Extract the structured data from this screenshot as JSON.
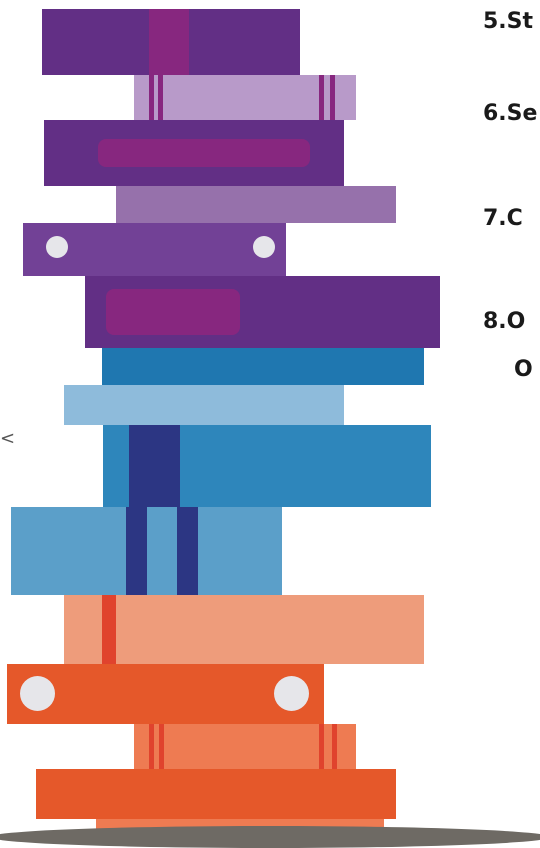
{
  "list": {
    "items": [
      {
        "label": "5.St"
      },
      {
        "label": "6.Se"
      },
      {
        "label": "7.C"
      },
      {
        "label": "8.O",
        "continuation": "O"
      }
    ]
  },
  "edge_mark": "<",
  "colors": {
    "purple_dark": "#622f85",
    "purple_light": "#b89ac9",
    "purple_mid": "#9671ab",
    "purple_band": "#87277f",
    "blue_dark": "#1f77b0",
    "blue_light": "#8ebbdb",
    "blue_mid": "#2e86bb",
    "blue_pale": "#5b9fc9",
    "navy": "#2c3683",
    "salmon": "#ee9c7b",
    "orange": "#e5582a",
    "orange_soft": "#ee7b52",
    "red_band": "#e0432d",
    "shelf": "#6e6a64",
    "dot": "#e6e6ea"
  }
}
